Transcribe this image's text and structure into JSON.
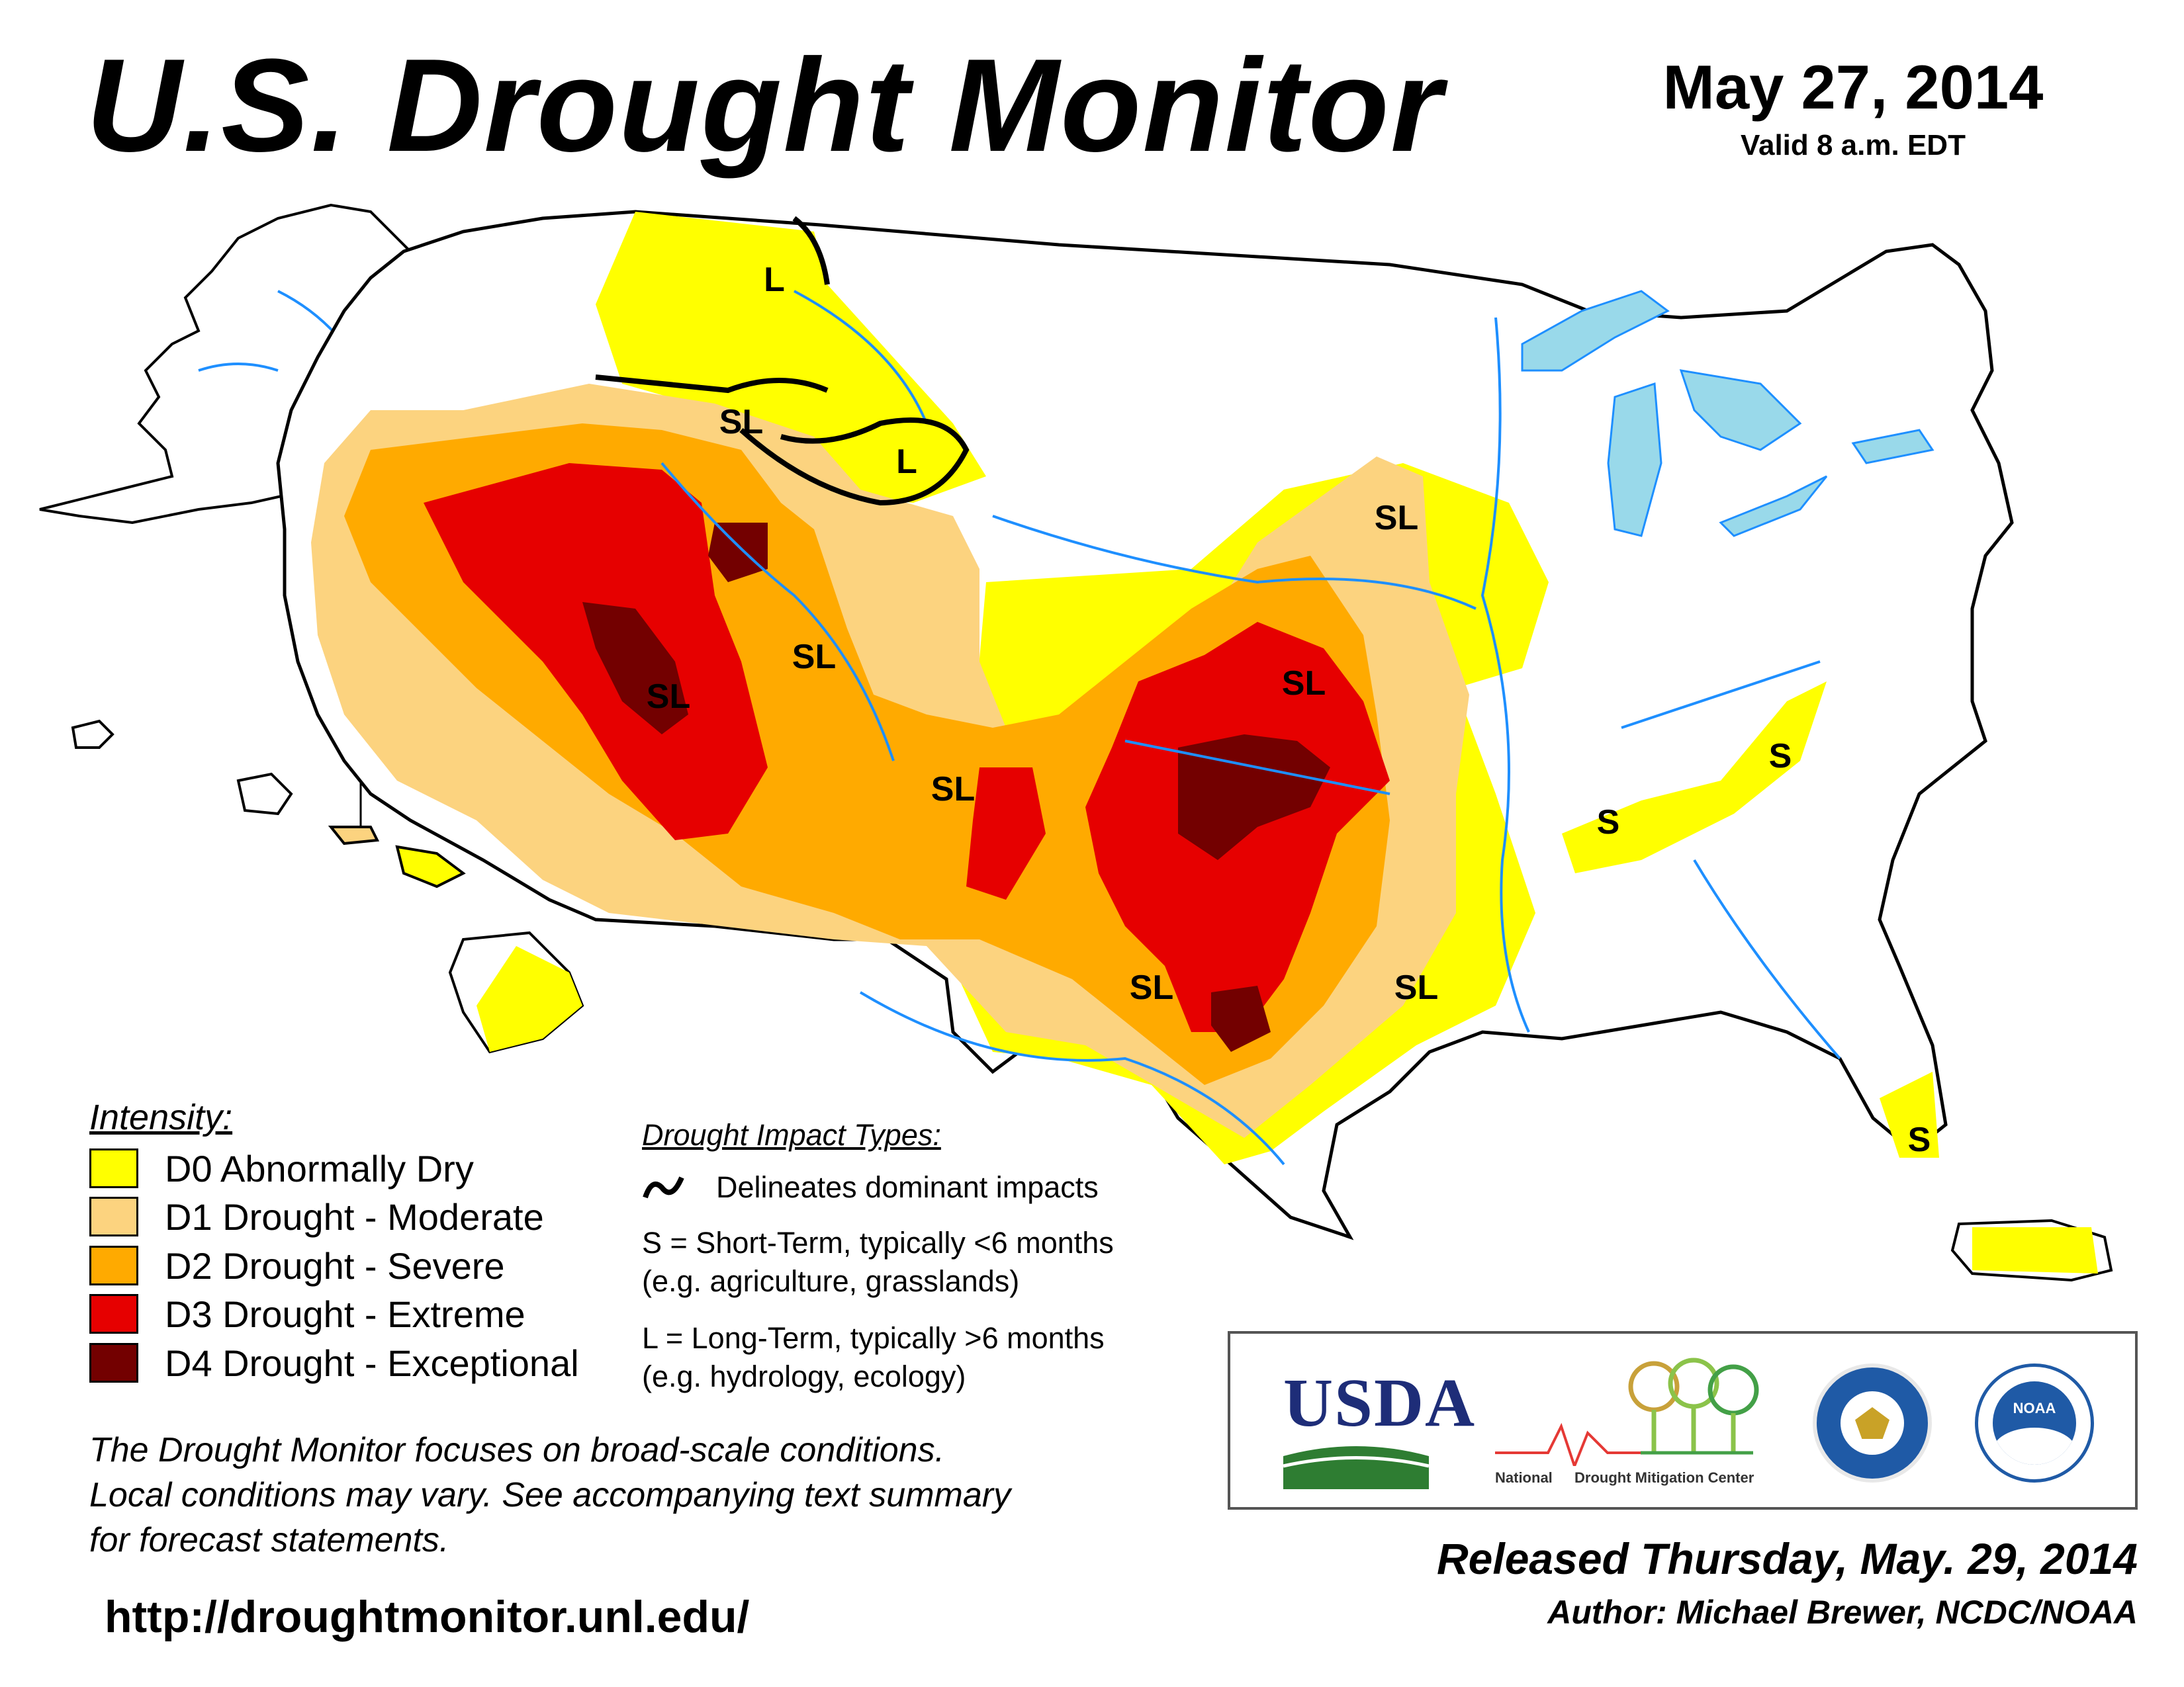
{
  "header": {
    "title": "U.S. Drought Monitor",
    "date": "May 27, 2014",
    "valid": "Valid 8 a.m. EDT"
  },
  "legend": {
    "heading": "Intensity:",
    "items": [
      {
        "label": "D0 Abnormally Dry",
        "color": "#ffff00"
      },
      {
        "label": "D1 Drought - Moderate",
        "color": "#fcd37f"
      },
      {
        "label": "D2 Drought - Severe",
        "color": "#ffaa00"
      },
      {
        "label": "D3 Drought - Extreme",
        "color": "#e60000"
      },
      {
        "label": "D4 Drought - Exceptional",
        "color": "#730000"
      }
    ]
  },
  "impacts": {
    "heading": "Drought Impact Types:",
    "delineates": "Delineates dominant impacts",
    "short_1": "S = Short-Term, typically <6 months",
    "short_2": "(e.g. agriculture, grasslands)",
    "long_1": "L = Long-Term, typically >6 months",
    "long_2": "(e.g. hydrology, ecology)"
  },
  "map_labels": {
    "l": "L",
    "s": "S",
    "sl": "SL"
  },
  "disclaimer": {
    "line1": "The Drought Monitor focuses on broad-scale conditions.",
    "line2": "Local conditions may vary. See accompanying text summary",
    "line3": "for forecast statements."
  },
  "footer": {
    "url": "http://droughtmonitor.unl.edu/",
    "released": "Released Thursday, May. 29, 2014",
    "author": "Author: Michael Brewer, NCDC/NOAA"
  },
  "logos": {
    "usda": "USDA",
    "ndmc_a": "National",
    "ndmc_b": "Drought Mitigation Center",
    "noaa": "NOAA"
  },
  "colors": {
    "water": "#99d9ea",
    "river": "#1e8fff",
    "land": "#ffffff",
    "border": "#999999"
  }
}
